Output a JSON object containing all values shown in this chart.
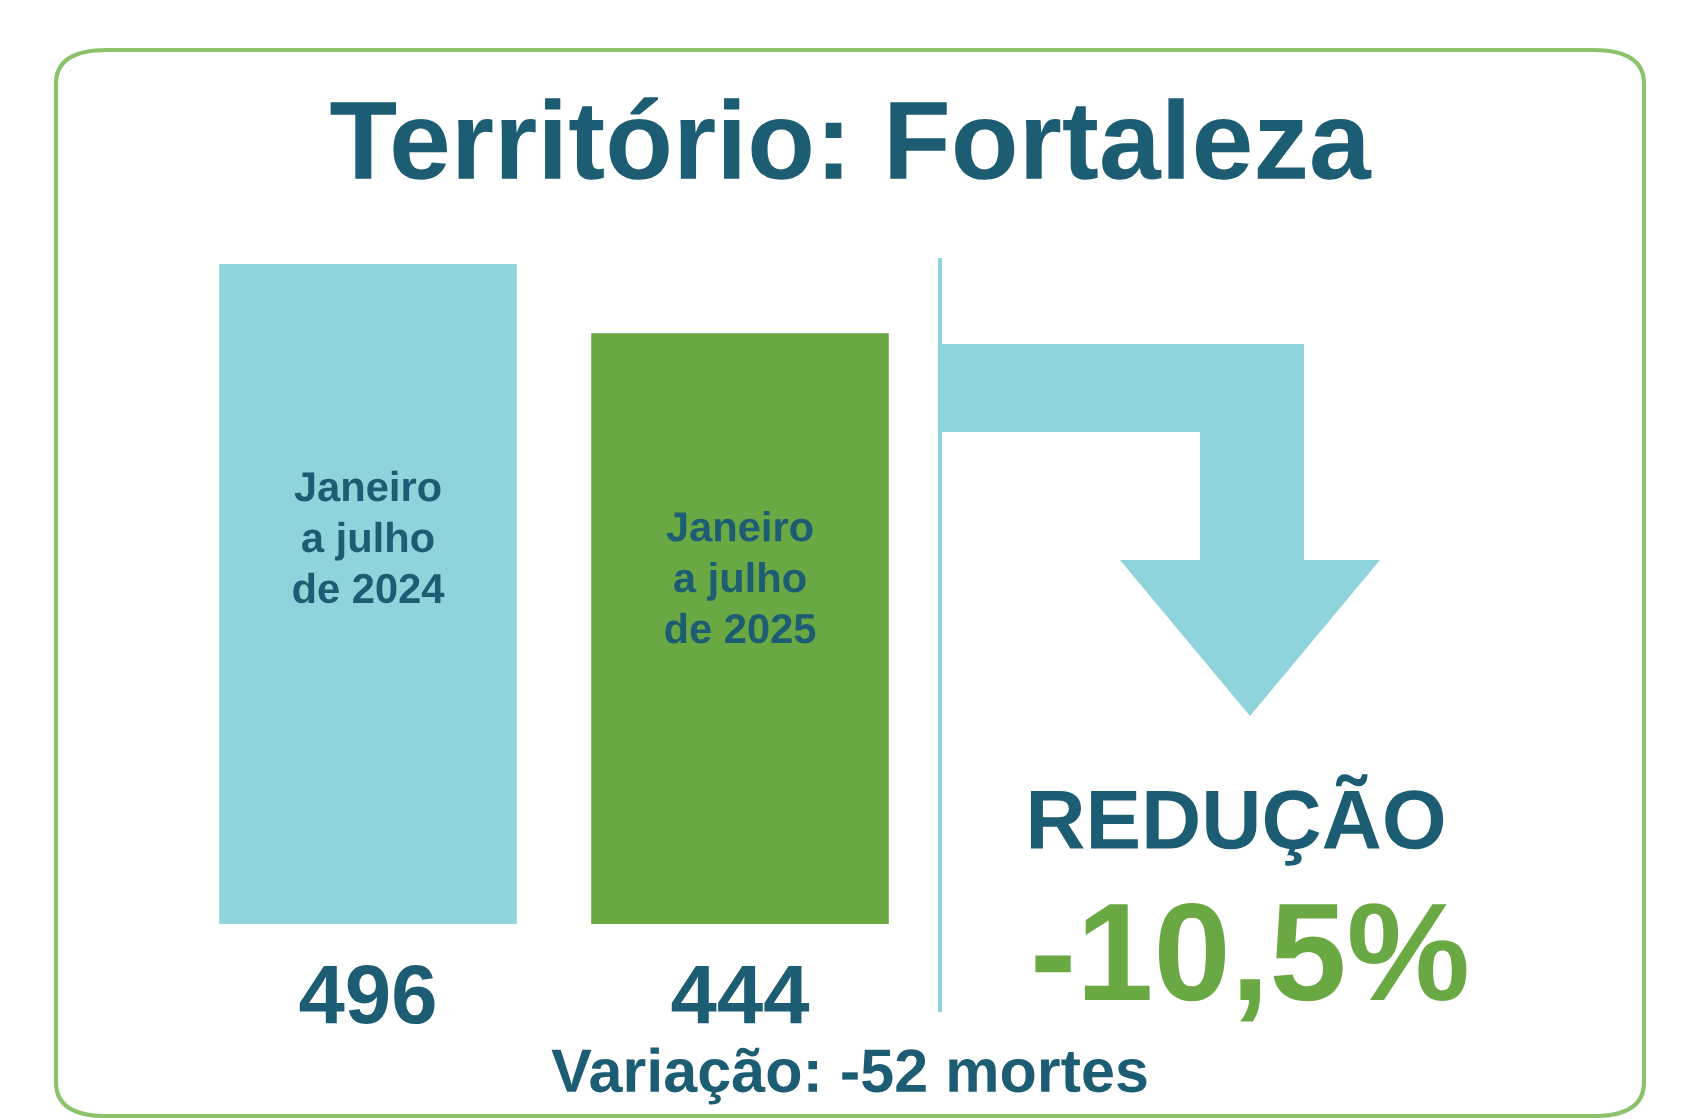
{
  "chart_data": {
    "type": "bar",
    "title": "Território: Fortaleza",
    "categories": [
      "Janeiro\na julho\nde 2024",
      "Janeiro\na julho\nde 2025"
    ],
    "values": [
      496,
      444
    ],
    "colors": [
      "#8fd3dc",
      "#6aa843"
    ],
    "data_labels": true,
    "annotations": [
      "REDUÇÃO",
      "-10,5%",
      "Variação: -52 mortes"
    ]
  }
}
